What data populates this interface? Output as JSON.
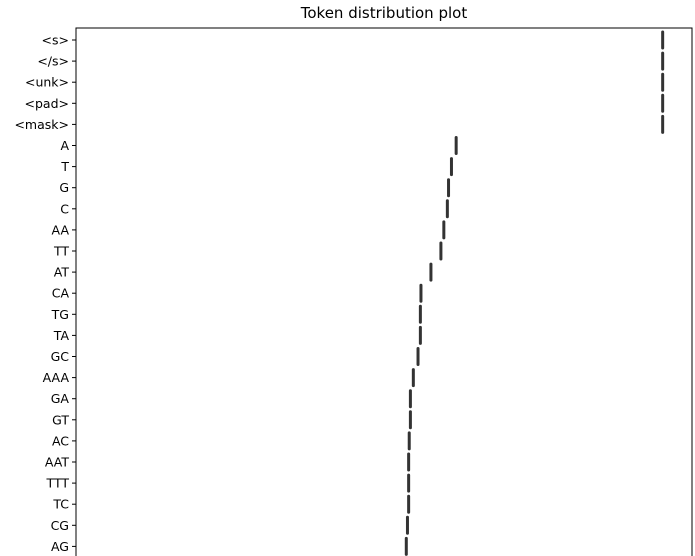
{
  "chart_data": {
    "type": "scatter",
    "title": "Token distribution plot",
    "xlabel": "",
    "ylabel": "",
    "categories": [
      "<s>",
      "</s>",
      "<unk>",
      "<pad>",
      "<mask>",
      "A",
      "T",
      "G",
      "C",
      "AA",
      "TT",
      "AT",
      "CA",
      "TG",
      "TA",
      "GC",
      "AAA",
      "GA",
      "GT",
      "AC",
      "AAT",
      "TTT",
      "TC",
      "CG",
      "AG"
    ],
    "values": [
      1.0,
      1.0,
      1.0,
      1.0,
      1.0,
      0.648,
      0.64,
      0.635,
      0.633,
      0.627,
      0.622,
      0.605,
      0.588,
      0.587,
      0.587,
      0.583,
      0.575,
      0.57,
      0.57,
      0.568,
      0.567,
      0.567,
      0.567,
      0.565,
      0.563
    ],
    "xlim": [
      0,
      1.05
    ],
    "marker": "vertical-dash",
    "marker_color": "#333333"
  }
}
